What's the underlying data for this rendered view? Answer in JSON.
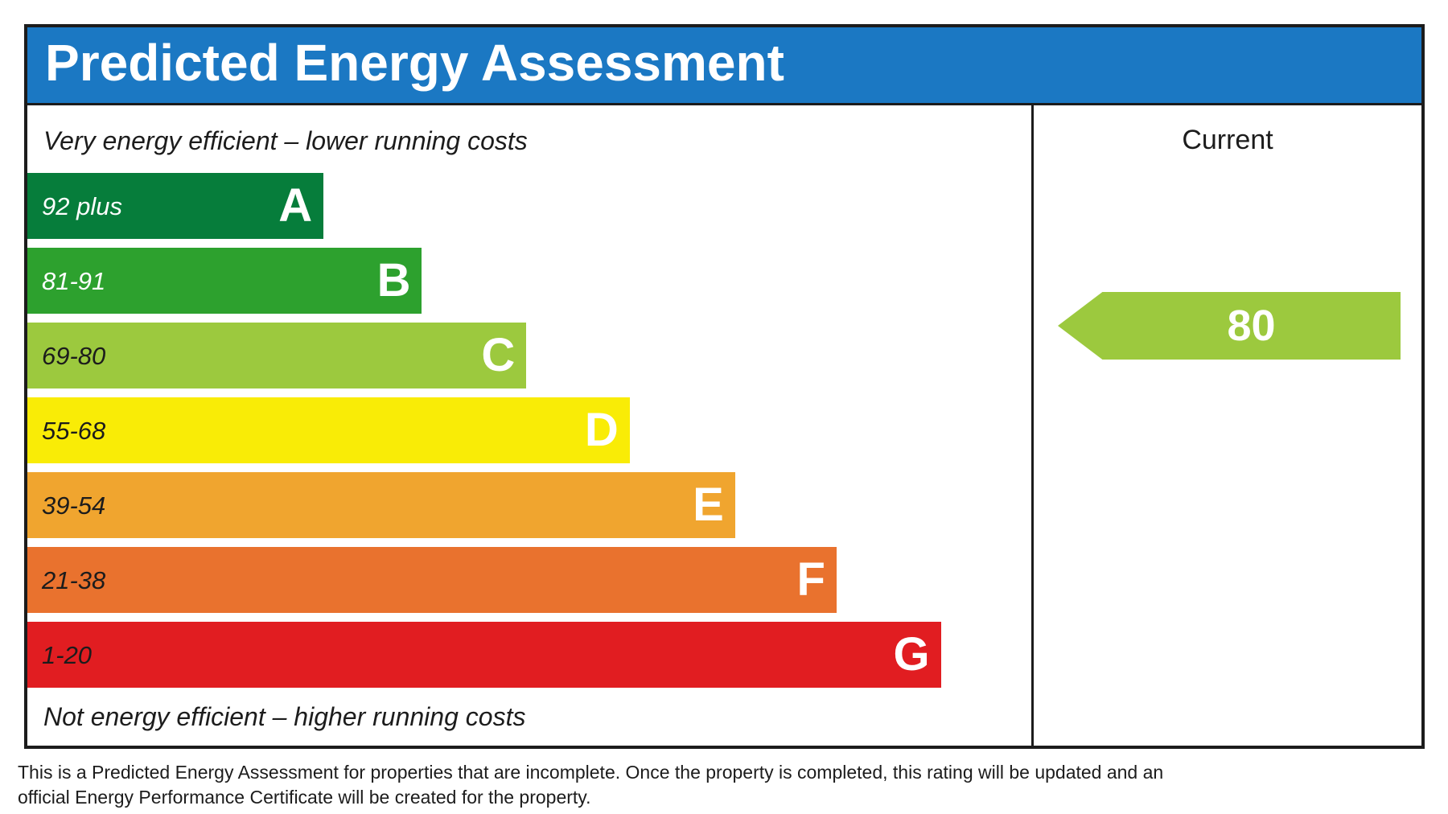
{
  "page": {
    "header": {
      "title": "Predicted Energy Assessment"
    },
    "captions": {
      "top": "Very energy efficient – lower running costs",
      "bottom": "Not energy efficient – higher running costs"
    },
    "footnote": {
      "lines": [
        "This is a Predicted Energy Assessment for properties that are incomplete. Once the property is completed, this rating will be updated and an",
        "official Energy Performance Certificate will be created for the property."
      ]
    }
  },
  "colors": {
    "header_blue": "#1b78c3",
    "border_dark": "#1c1c1c",
    "text_dark": "#1c1c1c",
    "text_light": "#ffffff"
  },
  "chart_data": {
    "type": "bar",
    "orientation": "horizontal",
    "title": "Predicted Energy Assessment",
    "categories": [
      "A",
      "B",
      "C",
      "D",
      "E",
      "F",
      "G"
    ],
    "bands": [
      {
        "letter": "A",
        "range": "92 plus",
        "color": "#067d3b",
        "width_pct": 29.5,
        "label_style": "light"
      },
      {
        "letter": "B",
        "range": "81-91",
        "color": "#2da12e",
        "width_pct": 39.3,
        "label_style": "light"
      },
      {
        "letter": "C",
        "range": "69-80",
        "color": "#9cc93e",
        "width_pct": 49.7,
        "label_style": "dark"
      },
      {
        "letter": "D",
        "range": "55-68",
        "color": "#f9ec06",
        "width_pct": 60.0,
        "label_style": "dark"
      },
      {
        "letter": "E",
        "range": "39-54",
        "color": "#f0a52f",
        "width_pct": 70.5,
        "label_style": "dark"
      },
      {
        "letter": "F",
        "range": "21-38",
        "color": "#e9722e",
        "width_pct": 80.6,
        "label_style": "dark"
      },
      {
        "letter": "G",
        "range": "1-20",
        "color": "#e11d21",
        "width_pct": 91.0,
        "label_style": "dark"
      }
    ],
    "current": {
      "column_label": "Current",
      "value": 80,
      "band": "C",
      "arrow_color": "#9cc93e"
    }
  }
}
